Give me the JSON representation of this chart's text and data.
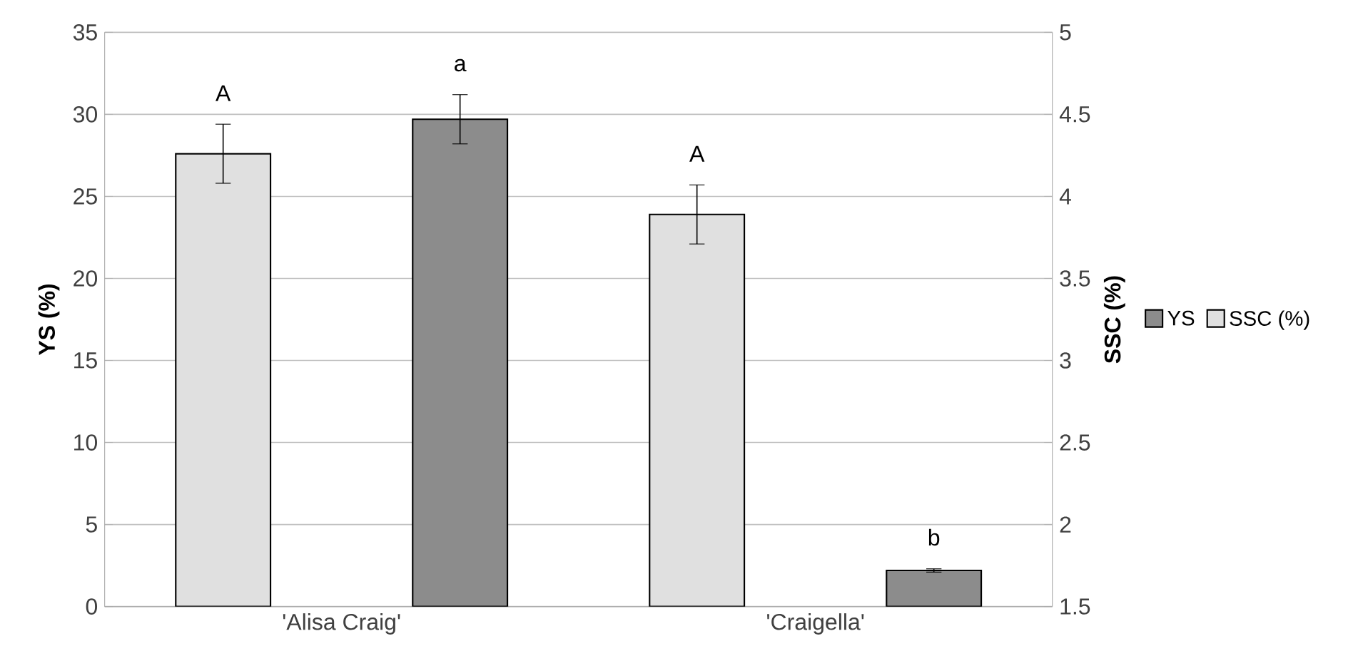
{
  "chart_data": {
    "type": "bar",
    "categories": [
      "'Alisa Craig'",
      "'Craigella'"
    ],
    "series": [
      {
        "name": "YS",
        "color": "#8c8c8c",
        "values": [
          29.7,
          2.2
        ],
        "errors": [
          1.5,
          0.1
        ],
        "axis": "y"
      },
      {
        "name": "SSC (%)",
        "color": "#e0e0e0",
        "values": [
          4.26,
          3.89
        ],
        "errors": [
          0.18,
          0.18
        ],
        "axis": "y2"
      }
    ],
    "ylabel": "YS (%)",
    "y2label": "SSC (%)",
    "ylim": [
      0,
      35
    ],
    "yticks": [
      0,
      5,
      10,
      15,
      20,
      25,
      30,
      35
    ],
    "y2lim": [
      1.5,
      5
    ],
    "y2ticks": [
      1.5,
      2,
      2.5,
      3,
      3.5,
      4,
      4.5,
      5
    ],
    "grid": "y",
    "legend": "right",
    "annotations": [
      "A",
      "a",
      "A",
      "b"
    ]
  }
}
